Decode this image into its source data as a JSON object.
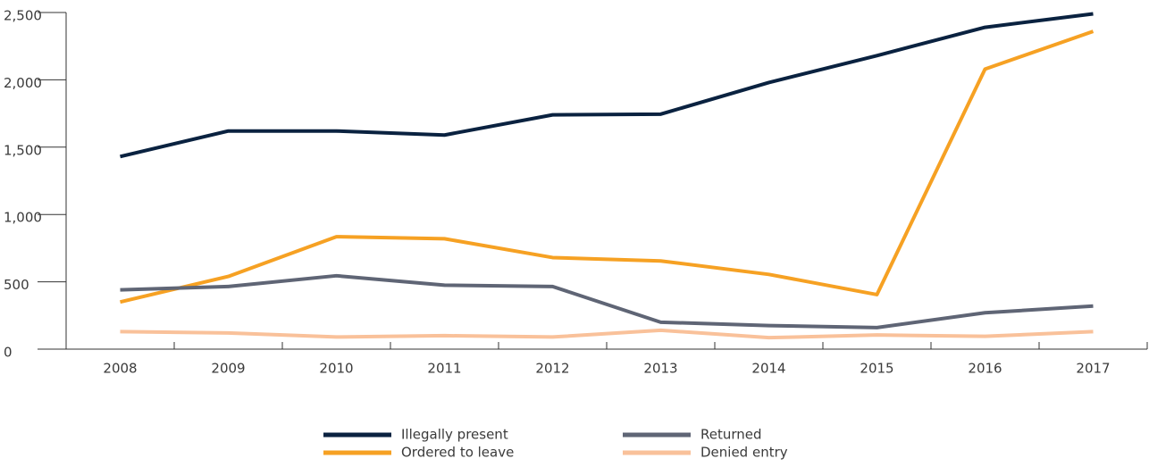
{
  "chart_data": {
    "type": "line",
    "categories": [
      "2008",
      "2009",
      "2010",
      "2011",
      "2012",
      "2013",
      "2014",
      "2015",
      "2016",
      "2017"
    ],
    "series": [
      {
        "name": "Illegally present",
        "color": "#0a2240",
        "values": [
          1430,
          1620,
          1620,
          1590,
          1740,
          1745,
          1980,
          2180,
          2390,
          2490
        ]
      },
      {
        "name": "Ordered to leave",
        "color": "#f6a123",
        "values": [
          350,
          540,
          835,
          820,
          680,
          655,
          555,
          405,
          2080,
          2360
        ]
      },
      {
        "name": "Returned",
        "color": "#5f6575",
        "values": [
          440,
          465,
          545,
          475,
          465,
          200,
          175,
          160,
          270,
          320
        ]
      },
      {
        "name": "Denied entry",
        "color": "#f9c19a",
        "values": [
          130,
          120,
          90,
          100,
          90,
          140,
          85,
          105,
          95,
          130
        ]
      }
    ],
    "ylim": [
      0,
      2500
    ],
    "yticks": [
      0,
      500,
      {
        "value": 1000,
        "label": "1,000"
      },
      {
        "value": 1500,
        "label": "1,500"
      },
      {
        "value": 2000,
        "label": "2,000"
      },
      {
        "value": 2500,
        "label": "2,500"
      }
    ],
    "legend": "bottom"
  }
}
